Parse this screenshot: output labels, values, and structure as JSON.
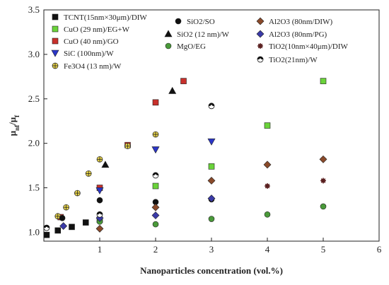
{
  "chart_data": {
    "type": "scatter",
    "xlabel": "Nanoparticles concentration (vol.%)",
    "ylabel_main": "μ",
    "ylabel_main_sub": "nf",
    "ylabel_sep": "/μ",
    "ylabel_den_sub": "f",
    "xlim": [
      0,
      6
    ],
    "ylim": [
      0.9,
      3.5
    ],
    "xticks": [
      {
        "value": 1,
        "label": "1"
      },
      {
        "value": 2,
        "label": "2"
      },
      {
        "value": 3,
        "label": "3"
      },
      {
        "value": 4,
        "label": "4"
      },
      {
        "value": 5,
        "label": "5"
      },
      {
        "value": 6,
        "label": "6"
      }
    ],
    "yticks": [
      {
        "value": 1.0,
        "label": "1.0"
      },
      {
        "value": 1.5,
        "label": "1.5"
      },
      {
        "value": 2.0,
        "label": "2.0"
      },
      {
        "value": 2.5,
        "label": "2.5"
      },
      {
        "value": 3.0,
        "label": "3.0"
      },
      {
        "value": 3.5,
        "label": "3.5"
      }
    ],
    "grid": false,
    "legend_placement": "top-inside",
    "series": [
      {
        "name": "TCNT(15nm×30μm)/DIW",
        "marker": "square",
        "color": "#111111",
        "points": [
          [
            0.05,
            0.97
          ],
          [
            0.25,
            1.02
          ],
          [
            0.5,
            1.06
          ],
          [
            0.75,
            1.11
          ]
        ]
      },
      {
        "name": "CuO (29 nm)/EG+W",
        "marker": "square",
        "color": "#6ad33a",
        "points": [
          [
            1,
            1.14
          ],
          [
            2,
            1.52
          ],
          [
            3,
            1.74
          ],
          [
            4,
            2.2
          ],
          [
            5,
            2.7
          ]
        ]
      },
      {
        "name": "CuO (40 nm)/GO",
        "marker": "square",
        "color": "#c8302b",
        "points": [
          [
            0.3,
            1.17
          ],
          [
            1,
            1.5
          ],
          [
            1.5,
            1.98
          ],
          [
            2,
            2.46
          ],
          [
            2.5,
            2.7
          ]
        ]
      },
      {
        "name": "SiC (100nm)/W",
        "marker": "triangle-down",
        "color": "#2b36c8",
        "points": [
          [
            1,
            1.47
          ],
          [
            2,
            1.93
          ],
          [
            3,
            2.02
          ]
        ]
      },
      {
        "name": "Fe3O4 (13 nm)/W",
        "marker": "circle-plus",
        "color": "#e8d44a",
        "points": [
          [
            0.25,
            1.18
          ],
          [
            0.4,
            1.28
          ],
          [
            0.6,
            1.44
          ],
          [
            0.8,
            1.66
          ],
          [
            1,
            1.82
          ],
          [
            1.5,
            1.97
          ],
          [
            2,
            2.1
          ]
        ]
      },
      {
        "name": "SiO2/SO",
        "marker": "circle",
        "color": "#111111",
        "points": [
          [
            0.33,
            1.16
          ],
          [
            1,
            1.36
          ],
          [
            2,
            1.34
          ],
          [
            3,
            1.37
          ]
        ]
      },
      {
        "name": "SiO2 (12 nm)/W",
        "marker": "triangle-up",
        "color": "#111111",
        "points": [
          [
            1.1,
            1.76
          ],
          [
            2.3,
            2.59
          ]
        ]
      },
      {
        "name": "MgO/EG",
        "marker": "circle",
        "color": "#4a9a3a",
        "points": [
          [
            1,
            1.12
          ],
          [
            2,
            1.09
          ],
          [
            3,
            1.15
          ],
          [
            4,
            1.2
          ],
          [
            5,
            1.29
          ]
        ]
      },
      {
        "name": "Al2O3 (80nm/DIW)",
        "marker": "diamond",
        "color": "#8a4a2a",
        "points": [
          [
            1,
            1.04
          ],
          [
            2,
            1.28
          ],
          [
            3,
            1.58
          ],
          [
            4,
            1.76
          ],
          [
            5,
            1.82
          ]
        ]
      },
      {
        "name": "Al2O3 (80nm/PG)",
        "marker": "diamond",
        "color": "#3a3aa8",
        "points": [
          [
            0.35,
            1.07
          ],
          [
            1,
            1.16
          ],
          [
            2,
            1.19
          ],
          [
            3,
            1.38
          ]
        ]
      },
      {
        "name": "TiO2(10nm×40μm)/DIW",
        "marker": "star",
        "color": "#5a2020",
        "points": [
          [
            4,
            1.52
          ],
          [
            5,
            1.58
          ]
        ]
      },
      {
        "name": "TiO2(21nm)/W",
        "marker": "circle-half",
        "color": "#111111",
        "points": [
          [
            0.05,
            1.05
          ],
          [
            1,
            1.2
          ],
          [
            2,
            1.64
          ],
          [
            3,
            2.42
          ]
        ]
      }
    ],
    "legend": [
      {
        "series": 0,
        "text": "TCNT(15nm×30μm)/DIW",
        "sub": ""
      },
      {
        "series": 1,
        "text": "CuO (29 nm)/EG+W",
        "sub": ""
      },
      {
        "series": 2,
        "text": "CuO (40 nm)/GO",
        "sub": ""
      },
      {
        "series": 3,
        "text": "SiC (100nm)/W",
        "sub": ""
      },
      {
        "series": 4,
        "text": "Fe3O4 (13 nm)/W",
        "sub": ""
      },
      {
        "series": 5,
        "text": "SiO2/SO",
        "sub": ""
      },
      {
        "series": 6,
        "text": "SiO2 (12 nm)/W",
        "sub": ""
      },
      {
        "series": 7,
        "text": "MgO/EG",
        "sub": ""
      },
      {
        "series": 8,
        "text": "Al2O3 (80nm/DIW)",
        "sub": ""
      },
      {
        "series": 9,
        "text": "Al2O3 (80nm/PG)",
        "sub": ""
      },
      {
        "series": 10,
        "text": "TiO2(10nm×40μm)/DIW",
        "sub": ""
      },
      {
        "series": 11,
        "text": "TiO2(21nm)/W",
        "sub": ""
      }
    ]
  }
}
